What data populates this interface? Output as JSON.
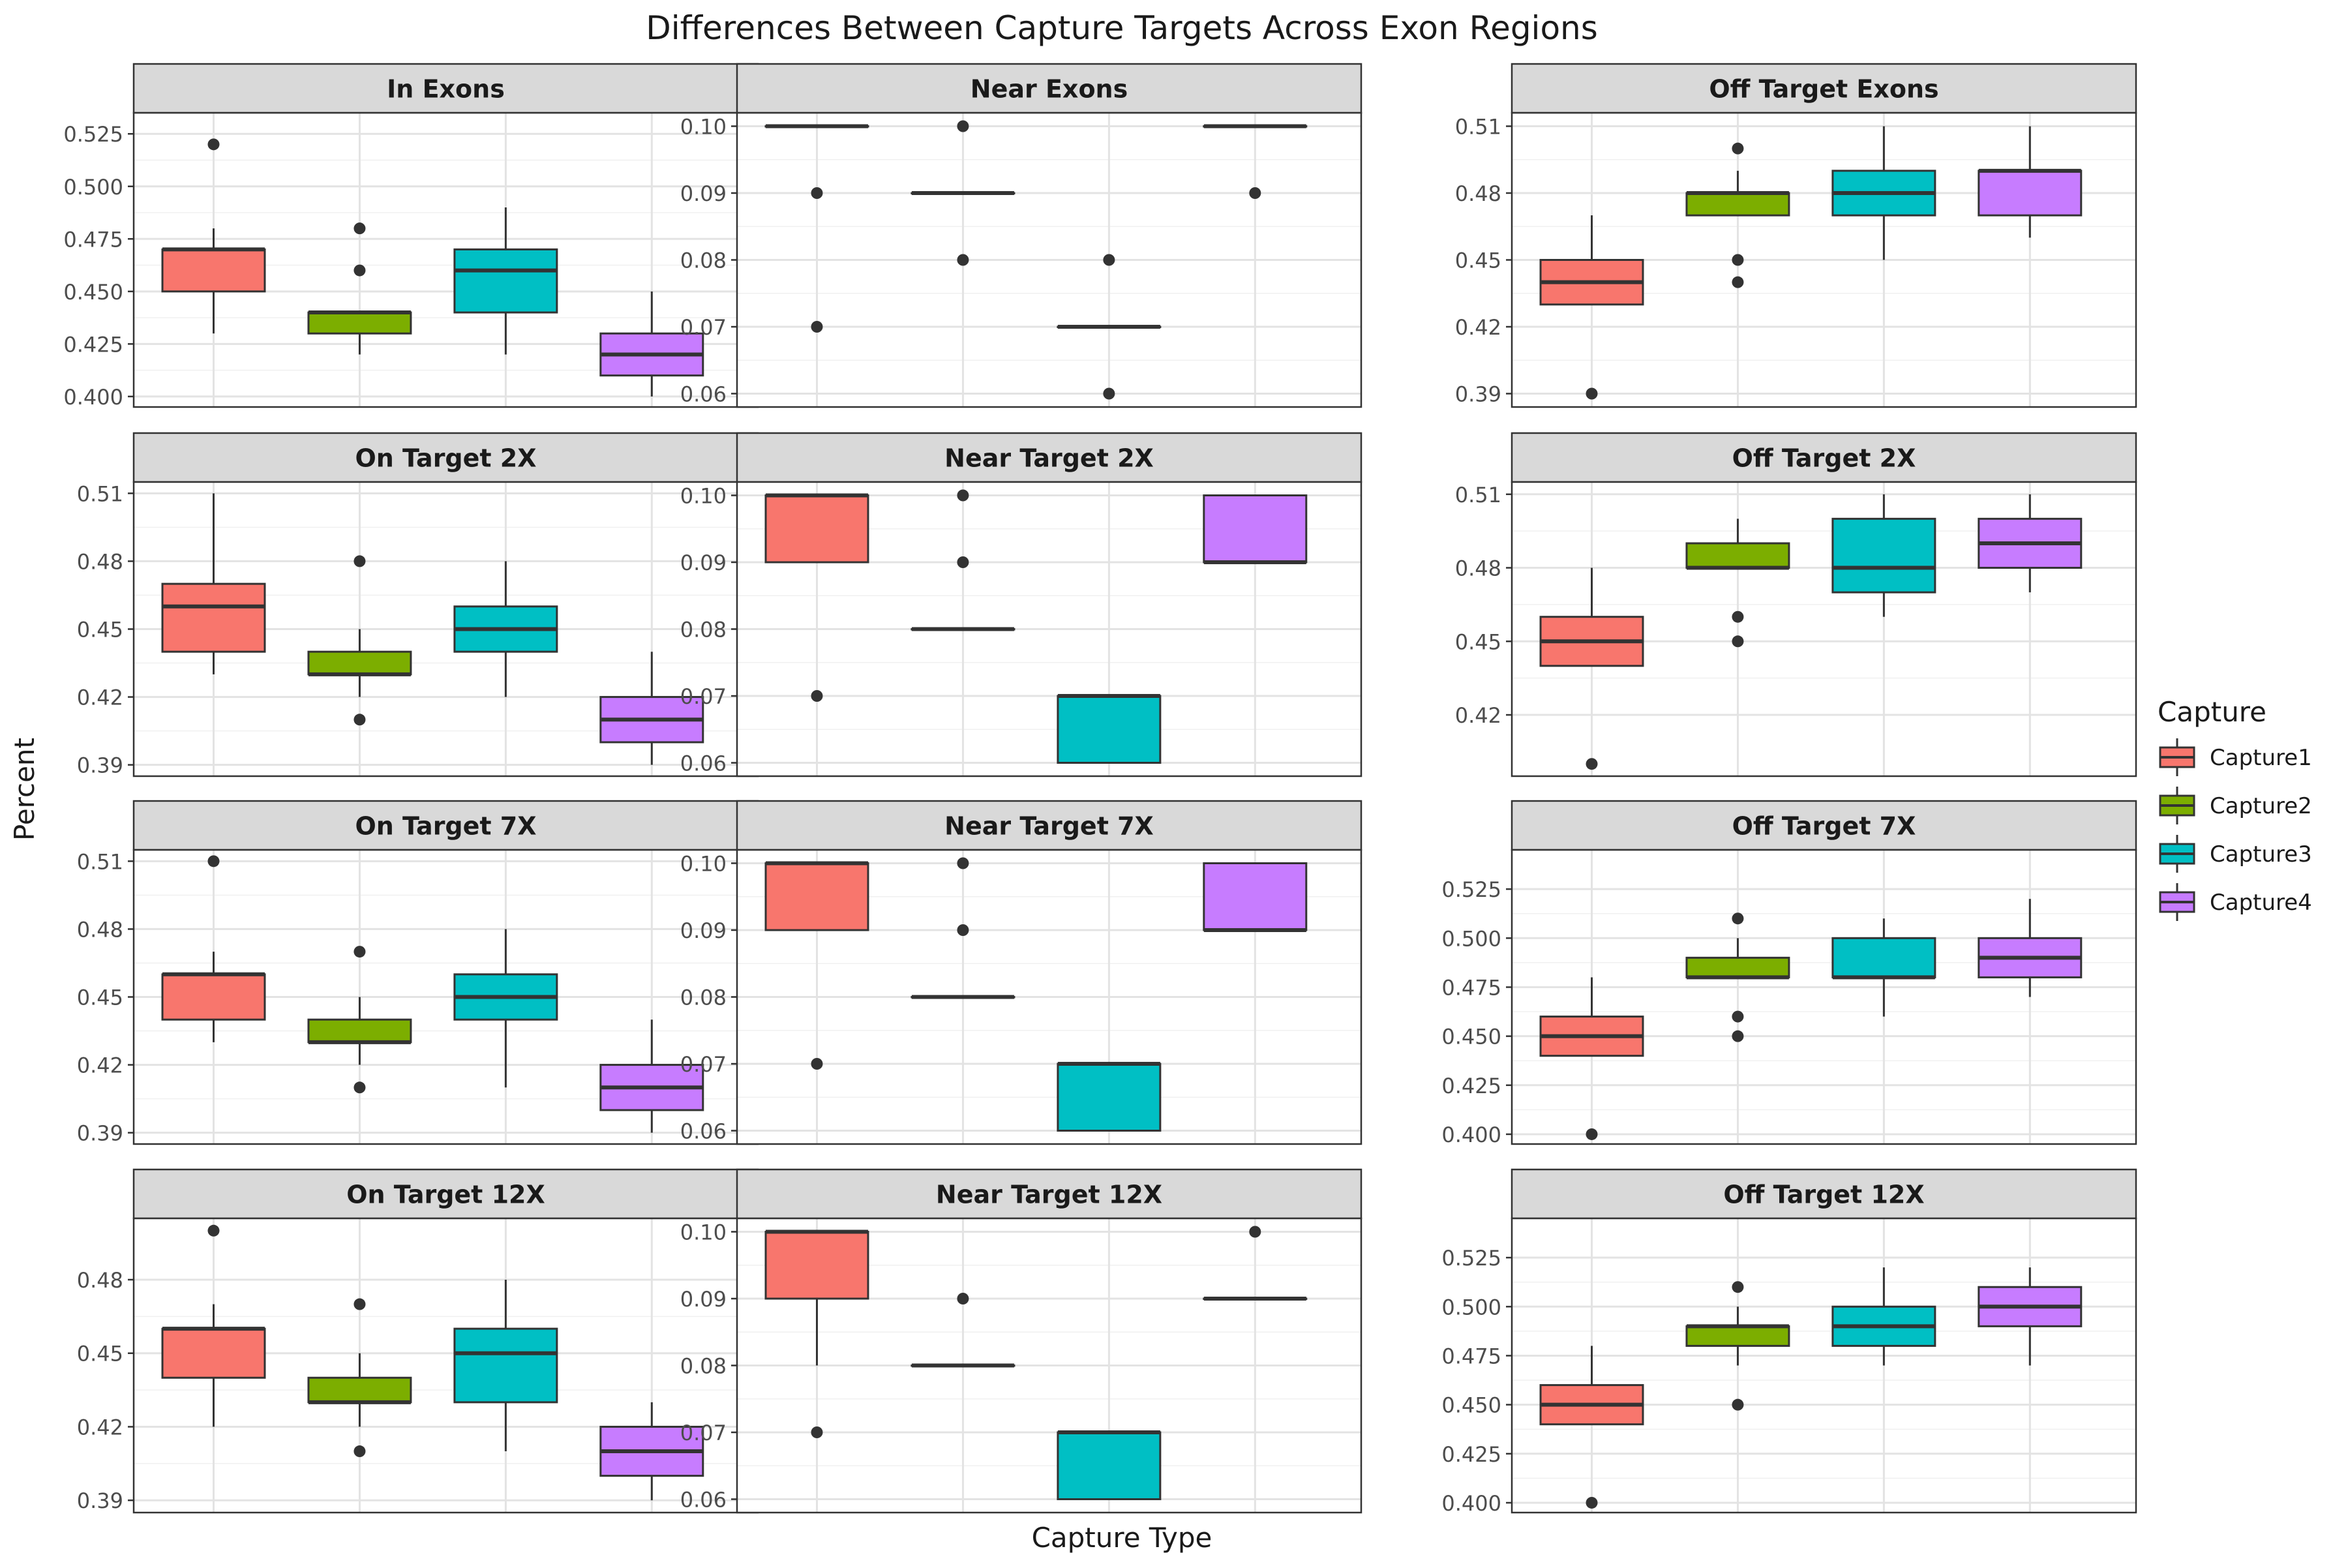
{
  "chart_data": {
    "type": "boxplot",
    "title": "Differences Between Capture Targets Across Exon Regions",
    "xlabel": "Capture Type",
    "ylabel": "Percent",
    "legend": {
      "title": "Capture",
      "placement": "right",
      "entries": [
        "Capture1",
        "Capture2",
        "Capture3",
        "Capture4"
      ]
    },
    "series_colors": {
      "Capture1": "#F8766D",
      "Capture2": "#7CAE00",
      "Capture3": "#00BFC4",
      "Capture4": "#C77CFF"
    },
    "grid": true,
    "facets": [
      {
        "title": "In Exons",
        "ylim": [
          0.395,
          0.535
        ],
        "ticks": [
          0.4,
          0.425,
          0.45,
          0.475,
          0.5,
          0.525
        ],
        "tick_labels": [
          "0.400",
          "0.425",
          "0.450",
          "0.475",
          "0.500",
          "0.525"
        ],
        "boxes": [
          {
            "series": "Capture1",
            "wlo": 0.43,
            "q1": 0.45,
            "med": 0.47,
            "q3": 0.47,
            "whi": 0.48,
            "outliers": [
              0.52
            ]
          },
          {
            "series": "Capture2",
            "wlo": 0.42,
            "q1": 0.43,
            "med": 0.44,
            "q3": 0.44,
            "whi": 0.44,
            "outliers": [
              0.46,
              0.48
            ]
          },
          {
            "series": "Capture3",
            "wlo": 0.42,
            "q1": 0.44,
            "med": 0.46,
            "q3": 0.47,
            "whi": 0.49,
            "outliers": []
          },
          {
            "series": "Capture4",
            "wlo": 0.4,
            "q1": 0.41,
            "med": 0.42,
            "q3": 0.43,
            "whi": 0.45,
            "outliers": []
          }
        ]
      },
      {
        "title": "Near Exons",
        "ylim": [
          0.058,
          0.102
        ],
        "ticks": [
          0.06,
          0.07,
          0.08,
          0.09,
          0.1
        ],
        "tick_labels": [
          "0.06",
          "0.07",
          "0.08",
          "0.09",
          "0.10"
        ],
        "boxes": [
          {
            "series": "Capture1",
            "wlo": 0.1,
            "q1": 0.1,
            "med": 0.1,
            "q3": 0.1,
            "whi": 0.1,
            "outliers": [
              0.09,
              0.07
            ]
          },
          {
            "series": "Capture2",
            "wlo": 0.09,
            "q1": 0.09,
            "med": 0.09,
            "q3": 0.09,
            "whi": 0.09,
            "outliers": [
              0.1,
              0.08
            ]
          },
          {
            "series": "Capture3",
            "wlo": 0.07,
            "q1": 0.07,
            "med": 0.07,
            "q3": 0.07,
            "whi": 0.07,
            "outliers": [
              0.08,
              0.06
            ]
          },
          {
            "series": "Capture4",
            "wlo": 0.1,
            "q1": 0.1,
            "med": 0.1,
            "q3": 0.1,
            "whi": 0.1,
            "outliers": [
              0.09
            ]
          }
        ]
      },
      {
        "title": "Off Target Exons",
        "ylim": [
          0.384,
          0.516
        ],
        "ticks": [
          0.39,
          0.42,
          0.45,
          0.48,
          0.51
        ],
        "tick_labels": [
          "0.39",
          "0.42",
          "0.45",
          "0.48",
          "0.51"
        ],
        "boxes": [
          {
            "series": "Capture1",
            "wlo": 0.43,
            "q1": 0.43,
            "med": 0.44,
            "q3": 0.45,
            "whi": 0.47,
            "outliers": [
              0.39
            ]
          },
          {
            "series": "Capture2",
            "wlo": 0.47,
            "q1": 0.47,
            "med": 0.48,
            "q3": 0.48,
            "whi": 0.49,
            "outliers": [
              0.5,
              0.45,
              0.44
            ]
          },
          {
            "series": "Capture3",
            "wlo": 0.45,
            "q1": 0.47,
            "med": 0.48,
            "q3": 0.49,
            "whi": 0.51,
            "outliers": []
          },
          {
            "series": "Capture4",
            "wlo": 0.46,
            "q1": 0.47,
            "med": 0.49,
            "q3": 0.49,
            "whi": 0.51,
            "outliers": []
          }
        ]
      },
      {
        "title": "On Target 2X",
        "ylim": [
          0.385,
          0.515
        ],
        "ticks": [
          0.39,
          0.42,
          0.45,
          0.48,
          0.51
        ],
        "tick_labels": [
          "0.39",
          "0.42",
          "0.45",
          "0.48",
          "0.51"
        ],
        "boxes": [
          {
            "series": "Capture1",
            "wlo": 0.43,
            "q1": 0.44,
            "med": 0.46,
            "q3": 0.47,
            "whi": 0.51,
            "outliers": []
          },
          {
            "series": "Capture2",
            "wlo": 0.42,
            "q1": 0.43,
            "med": 0.43,
            "q3": 0.44,
            "whi": 0.45,
            "outliers": [
              0.48,
              0.41
            ]
          },
          {
            "series": "Capture3",
            "wlo": 0.42,
            "q1": 0.44,
            "med": 0.45,
            "q3": 0.46,
            "whi": 0.48,
            "outliers": []
          },
          {
            "series": "Capture4",
            "wlo": 0.39,
            "q1": 0.4,
            "med": 0.41,
            "q3": 0.42,
            "whi": 0.44,
            "outliers": []
          }
        ]
      },
      {
        "title": "Near Target 2X",
        "ylim": [
          0.058,
          0.102
        ],
        "ticks": [
          0.06,
          0.07,
          0.08,
          0.09,
          0.1
        ],
        "tick_labels": [
          "0.06",
          "0.07",
          "0.08",
          "0.09",
          "0.10"
        ],
        "boxes": [
          {
            "series": "Capture1",
            "wlo": 0.09,
            "q1": 0.09,
            "med": 0.1,
            "q3": 0.1,
            "whi": 0.1,
            "outliers": [
              0.07
            ]
          },
          {
            "series": "Capture2",
            "wlo": 0.08,
            "q1": 0.08,
            "med": 0.08,
            "q3": 0.08,
            "whi": 0.08,
            "outliers": [
              0.1,
              0.09
            ]
          },
          {
            "series": "Capture3",
            "wlo": 0.06,
            "q1": 0.06,
            "med": 0.07,
            "q3": 0.07,
            "whi": 0.07,
            "outliers": []
          },
          {
            "series": "Capture4",
            "wlo": 0.09,
            "q1": 0.09,
            "med": 0.09,
            "q3": 0.1,
            "whi": 0.1,
            "outliers": []
          }
        ]
      },
      {
        "title": "Off Target 2X",
        "ylim": [
          0.395,
          0.515
        ],
        "ticks": [
          0.42,
          0.45,
          0.48,
          0.51
        ],
        "tick_labels": [
          "0.42",
          "0.45",
          "0.48",
          "0.51"
        ],
        "boxes": [
          {
            "series": "Capture1",
            "wlo": 0.44,
            "q1": 0.44,
            "med": 0.45,
            "q3": 0.46,
            "whi": 0.48,
            "outliers": [
              0.4
            ]
          },
          {
            "series": "Capture2",
            "wlo": 0.48,
            "q1": 0.48,
            "med": 0.48,
            "q3": 0.49,
            "whi": 0.5,
            "outliers": [
              0.46,
              0.45
            ]
          },
          {
            "series": "Capture3",
            "wlo": 0.46,
            "q1": 0.47,
            "med": 0.48,
            "q3": 0.5,
            "whi": 0.51,
            "outliers": []
          },
          {
            "series": "Capture4",
            "wlo": 0.47,
            "q1": 0.48,
            "med": 0.49,
            "q3": 0.5,
            "whi": 0.51,
            "outliers": []
          }
        ]
      },
      {
        "title": "On Target 7X",
        "ylim": [
          0.385,
          0.515
        ],
        "ticks": [
          0.39,
          0.42,
          0.45,
          0.48,
          0.51
        ],
        "tick_labels": [
          "0.39",
          "0.42",
          "0.45",
          "0.48",
          "0.51"
        ],
        "boxes": [
          {
            "series": "Capture1",
            "wlo": 0.43,
            "q1": 0.44,
            "med": 0.46,
            "q3": 0.46,
            "whi": 0.47,
            "outliers": [
              0.51
            ]
          },
          {
            "series": "Capture2",
            "wlo": 0.42,
            "q1": 0.43,
            "med": 0.43,
            "q3": 0.44,
            "whi": 0.45,
            "outliers": [
              0.47,
              0.41
            ]
          },
          {
            "series": "Capture3",
            "wlo": 0.41,
            "q1": 0.44,
            "med": 0.45,
            "q3": 0.46,
            "whi": 0.48,
            "outliers": []
          },
          {
            "series": "Capture4",
            "wlo": 0.39,
            "q1": 0.4,
            "med": 0.41,
            "q3": 0.42,
            "whi": 0.44,
            "outliers": []
          }
        ]
      },
      {
        "title": "Near Target 7X",
        "ylim": [
          0.058,
          0.102
        ],
        "ticks": [
          0.06,
          0.07,
          0.08,
          0.09,
          0.1
        ],
        "tick_labels": [
          "0.06",
          "0.07",
          "0.08",
          "0.09",
          "0.10"
        ],
        "boxes": [
          {
            "series": "Capture1",
            "wlo": 0.09,
            "q1": 0.09,
            "med": 0.1,
            "q3": 0.1,
            "whi": 0.1,
            "outliers": [
              0.07
            ]
          },
          {
            "series": "Capture2",
            "wlo": 0.08,
            "q1": 0.08,
            "med": 0.08,
            "q3": 0.08,
            "whi": 0.08,
            "outliers": [
              0.1,
              0.09
            ]
          },
          {
            "series": "Capture3",
            "wlo": 0.06,
            "q1": 0.06,
            "med": 0.07,
            "q3": 0.07,
            "whi": 0.07,
            "outliers": []
          },
          {
            "series": "Capture4",
            "wlo": 0.09,
            "q1": 0.09,
            "med": 0.09,
            "q3": 0.1,
            "whi": 0.1,
            "outliers": []
          }
        ]
      },
      {
        "title": "Off Target 7X",
        "ylim": [
          0.395,
          0.545
        ],
        "ticks": [
          0.4,
          0.425,
          0.45,
          0.475,
          0.5,
          0.525
        ],
        "tick_labels": [
          "0.400",
          "0.425",
          "0.450",
          "0.475",
          "0.500",
          "0.525"
        ],
        "boxes": [
          {
            "series": "Capture1",
            "wlo": 0.44,
            "q1": 0.44,
            "med": 0.45,
            "q3": 0.46,
            "whi": 0.48,
            "outliers": [
              0.4
            ]
          },
          {
            "series": "Capture2",
            "wlo": 0.48,
            "q1": 0.48,
            "med": 0.48,
            "q3": 0.49,
            "whi": 0.5,
            "outliers": [
              0.51,
              0.46,
              0.45
            ]
          },
          {
            "series": "Capture3",
            "wlo": 0.46,
            "q1": 0.48,
            "med": 0.48,
            "q3": 0.5,
            "whi": 0.51,
            "outliers": []
          },
          {
            "series": "Capture4",
            "wlo": 0.47,
            "q1": 0.48,
            "med": 0.49,
            "q3": 0.5,
            "whi": 0.52,
            "outliers": []
          }
        ]
      },
      {
        "title": "On Target 12X",
        "ylim": [
          0.385,
          0.505
        ],
        "ticks": [
          0.39,
          0.42,
          0.45,
          0.48
        ],
        "tick_labels": [
          "0.39",
          "0.42",
          "0.45",
          "0.48"
        ],
        "boxes": [
          {
            "series": "Capture1",
            "wlo": 0.42,
            "q1": 0.44,
            "med": 0.46,
            "q3": 0.46,
            "whi": 0.47,
            "outliers": [
              0.5
            ]
          },
          {
            "series": "Capture2",
            "wlo": 0.42,
            "q1": 0.43,
            "med": 0.43,
            "q3": 0.44,
            "whi": 0.45,
            "outliers": [
              0.47,
              0.41
            ]
          },
          {
            "series": "Capture3",
            "wlo": 0.41,
            "q1": 0.43,
            "med": 0.45,
            "q3": 0.46,
            "whi": 0.48,
            "outliers": []
          },
          {
            "series": "Capture4",
            "wlo": 0.39,
            "q1": 0.4,
            "med": 0.41,
            "q3": 0.42,
            "whi": 0.43,
            "outliers": []
          }
        ]
      },
      {
        "title": "Near Target 12X",
        "ylim": [
          0.058,
          0.102
        ],
        "ticks": [
          0.06,
          0.07,
          0.08,
          0.09,
          0.1
        ],
        "tick_labels": [
          "0.06",
          "0.07",
          "0.08",
          "0.09",
          "0.10"
        ],
        "boxes": [
          {
            "series": "Capture1",
            "wlo": 0.08,
            "q1": 0.09,
            "med": 0.1,
            "q3": 0.1,
            "whi": 0.1,
            "outliers": [
              0.07
            ]
          },
          {
            "series": "Capture2",
            "wlo": 0.08,
            "q1": 0.08,
            "med": 0.08,
            "q3": 0.08,
            "whi": 0.08,
            "outliers": [
              0.09
            ]
          },
          {
            "series": "Capture3",
            "wlo": 0.06,
            "q1": 0.06,
            "med": 0.07,
            "q3": 0.07,
            "whi": 0.07,
            "outliers": []
          },
          {
            "series": "Capture4",
            "wlo": 0.09,
            "q1": 0.09,
            "med": 0.09,
            "q3": 0.09,
            "whi": 0.09,
            "outliers": [
              0.1
            ]
          }
        ]
      },
      {
        "title": "Off Target 12X",
        "ylim": [
          0.395,
          0.545
        ],
        "ticks": [
          0.4,
          0.425,
          0.45,
          0.475,
          0.5,
          0.525
        ],
        "tick_labels": [
          "0.400",
          "0.425",
          "0.450",
          "0.475",
          "0.500",
          "0.525"
        ],
        "boxes": [
          {
            "series": "Capture1",
            "wlo": 0.44,
            "q1": 0.44,
            "med": 0.45,
            "q3": 0.46,
            "whi": 0.48,
            "outliers": [
              0.4
            ]
          },
          {
            "series": "Capture2",
            "wlo": 0.47,
            "q1": 0.48,
            "med": 0.49,
            "q3": 0.49,
            "whi": 0.5,
            "outliers": [
              0.51,
              0.45
            ]
          },
          {
            "series": "Capture3",
            "wlo": 0.47,
            "q1": 0.48,
            "med": 0.49,
            "q3": 0.5,
            "whi": 0.52,
            "outliers": []
          },
          {
            "series": "Capture4",
            "wlo": 0.47,
            "q1": 0.49,
            "med": 0.5,
            "q3": 0.51,
            "whi": 0.52,
            "outliers": []
          }
        ]
      }
    ]
  }
}
